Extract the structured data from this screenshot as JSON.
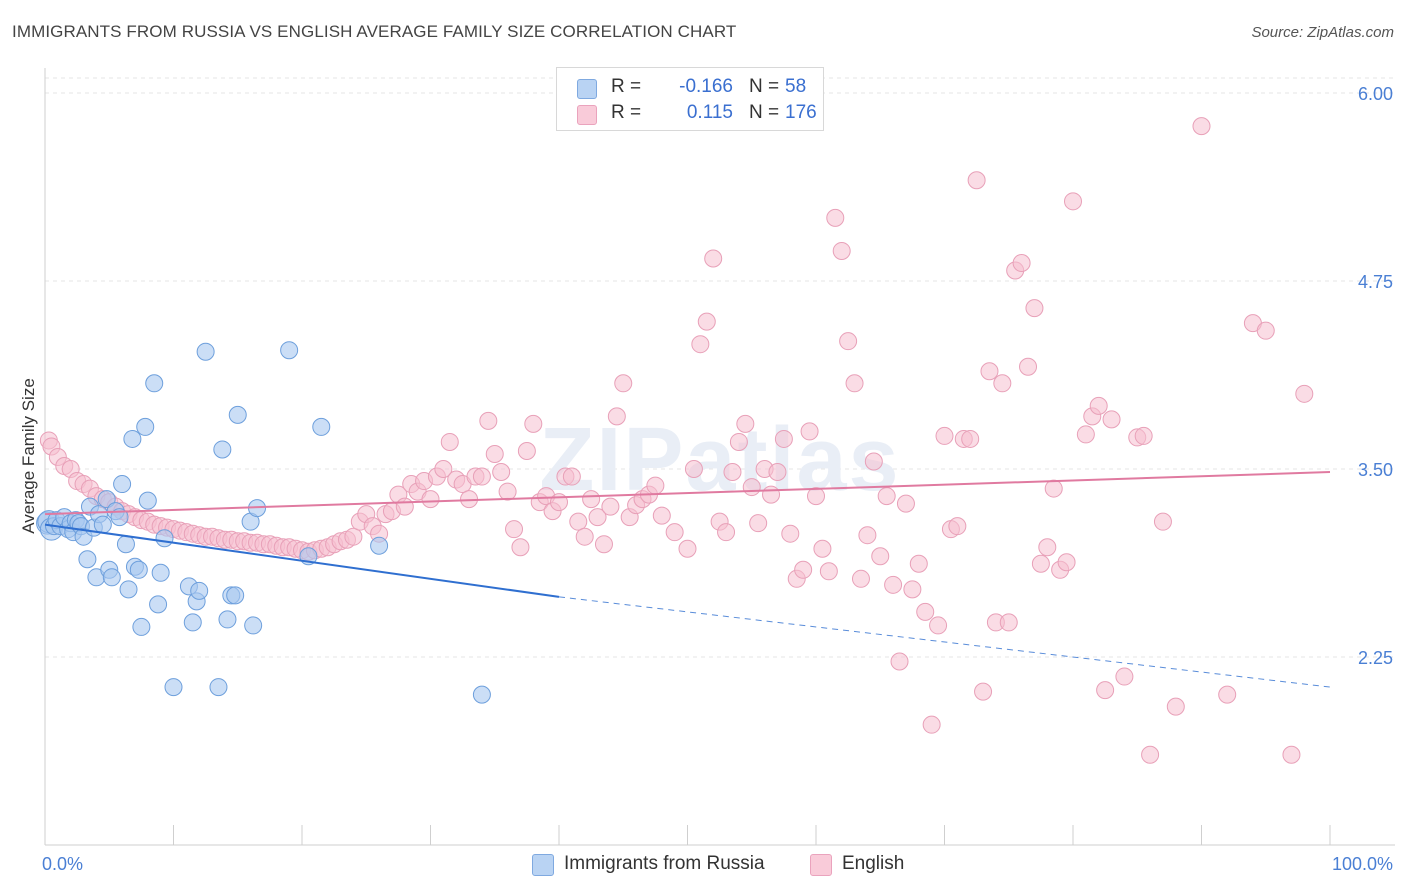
{
  "header": {
    "title": "IMMIGRANTS FROM RUSSIA VS ENGLISH AVERAGE FAMILY SIZE CORRELATION CHART",
    "source": "Source: ZipAtlas.com"
  },
  "legend": {
    "rows": [
      {
        "r_label": "R =",
        "r_value": "-0.166",
        "n_label": "N =",
        "n_value": "58"
      },
      {
        "r_label": "R =",
        "r_value": "0.115",
        "n_label": "N =",
        "n_value": "176"
      }
    ]
  },
  "bottom_legend": {
    "items": [
      {
        "label": "Immigrants from Russia"
      },
      {
        "label": "English"
      }
    ]
  },
  "colors": {
    "blue_fill": "#a9c8f0",
    "blue_stroke": "#6d9fdc",
    "blue_line": "#2f6fd0",
    "pink_fill": "#f6bfd0",
    "pink_stroke": "#e8a0b8",
    "pink_line": "#e07aa0",
    "tick_label": "#4a7fd4",
    "grid": "#e6e6e6"
  },
  "chart_data": {
    "type": "scatter",
    "title": "IMMIGRANTS FROM RUSSIA VS ENGLISH AVERAGE FAMILY SIZE CORRELATION CHART",
    "xlabel": "",
    "ylabel": "Average Family Size",
    "x_unit": "%",
    "xlim": [
      0,
      100
    ],
    "ylim": [
      1.0,
      6.1
    ],
    "y_ticks": [
      2.25,
      3.5,
      4.75,
      6.0
    ],
    "y_tick_labels": [
      "2.25",
      "3.50",
      "4.75",
      "6.00"
    ],
    "x_tick_labels": [
      "0.0%",
      "100.0%"
    ],
    "grid": true,
    "legend_position": "top-center",
    "watermark": "ZIPatlas",
    "series": [
      {
        "name": "Immigrants from Russia",
        "color": "#a9c8f0",
        "trend": {
          "x0": 0.0,
          "y0": 3.13,
          "x1": 40.0,
          "y1": 2.65,
          "dashed_to_x": 100.0,
          "dashed_to_y": 2.05
        },
        "points": [
          [
            0.2,
            3.14
          ],
          [
            0.3,
            3.15
          ],
          [
            0.5,
            3.1
          ],
          [
            0.7,
            3.12
          ],
          [
            0.9,
            3.16
          ],
          [
            1.2,
            3.12
          ],
          [
            1.5,
            3.18
          ],
          [
            1.8,
            3.1
          ],
          [
            2.0,
            3.14
          ],
          [
            2.2,
            3.08
          ],
          [
            2.4,
            3.16
          ],
          [
            2.6,
            3.14
          ],
          [
            2.8,
            3.12
          ],
          [
            3.0,
            3.05
          ],
          [
            3.3,
            2.9
          ],
          [
            3.5,
            3.25
          ],
          [
            3.8,
            3.11
          ],
          [
            4.0,
            2.78
          ],
          [
            4.2,
            3.2
          ],
          [
            4.5,
            3.13
          ],
          [
            4.8,
            3.3
          ],
          [
            5.0,
            2.83
          ],
          [
            5.2,
            2.78
          ],
          [
            5.5,
            3.22
          ],
          [
            5.8,
            3.18
          ],
          [
            6.0,
            3.4
          ],
          [
            6.3,
            3.0
          ],
          [
            6.5,
            2.7
          ],
          [
            6.8,
            3.7
          ],
          [
            7.0,
            2.85
          ],
          [
            7.3,
            2.83
          ],
          [
            7.5,
            2.45
          ],
          [
            7.8,
            3.78
          ],
          [
            8.0,
            3.29
          ],
          [
            8.5,
            4.07
          ],
          [
            8.8,
            2.6
          ],
          [
            9.0,
            2.81
          ],
          [
            9.3,
            3.04
          ],
          [
            10.0,
            2.05
          ],
          [
            11.2,
            2.72
          ],
          [
            11.5,
            2.48
          ],
          [
            11.8,
            2.62
          ],
          [
            12.0,
            2.69
          ],
          [
            12.5,
            4.28
          ],
          [
            13.5,
            2.05
          ],
          [
            13.8,
            3.63
          ],
          [
            14.2,
            2.5
          ],
          [
            14.5,
            2.66
          ],
          [
            14.8,
            2.66
          ],
          [
            15.0,
            3.86
          ],
          [
            16.0,
            3.15
          ],
          [
            16.2,
            2.46
          ],
          [
            16.5,
            3.24
          ],
          [
            19.0,
            4.29
          ],
          [
            20.5,
            2.92
          ],
          [
            21.5,
            3.78
          ],
          [
            26.0,
            2.99
          ],
          [
            34.0,
            2.0
          ]
        ]
      },
      {
        "name": "English",
        "color": "#f6bfd0",
        "trend": {
          "x0": 0.0,
          "y0": 3.2,
          "x1": 100.0,
          "y1": 3.48
        },
        "points": [
          [
            0.3,
            3.69
          ],
          [
            0.5,
            3.65
          ],
          [
            1.0,
            3.58
          ],
          [
            1.5,
            3.52
          ],
          [
            2.0,
            3.5
          ],
          [
            2.5,
            3.42
          ],
          [
            3.0,
            3.4
          ],
          [
            3.5,
            3.37
          ],
          [
            4.0,
            3.32
          ],
          [
            4.5,
            3.3
          ],
          [
            5.0,
            3.28
          ],
          [
            5.5,
            3.25
          ],
          [
            6.0,
            3.22
          ],
          [
            6.5,
            3.2
          ],
          [
            7.0,
            3.18
          ],
          [
            7.5,
            3.16
          ],
          [
            8.0,
            3.15
          ],
          [
            8.5,
            3.13
          ],
          [
            9.0,
            3.12
          ],
          [
            9.5,
            3.11
          ],
          [
            10.0,
            3.1
          ],
          [
            10.5,
            3.09
          ],
          [
            11.0,
            3.08
          ],
          [
            11.5,
            3.07
          ],
          [
            12.0,
            3.06
          ],
          [
            12.5,
            3.05
          ],
          [
            13.0,
            3.05
          ],
          [
            13.5,
            3.04
          ],
          [
            14.0,
            3.03
          ],
          [
            14.5,
            3.03
          ],
          [
            15.0,
            3.02
          ],
          [
            15.5,
            3.02
          ],
          [
            16.0,
            3.01
          ],
          [
            16.5,
            3.01
          ],
          [
            17.0,
            3.0
          ],
          [
            17.5,
            3.0
          ],
          [
            18.0,
            2.99
          ],
          [
            18.5,
            2.98
          ],
          [
            19.0,
            2.98
          ],
          [
            19.5,
            2.97
          ],
          [
            20.0,
            2.96
          ],
          [
            20.5,
            2.95
          ],
          [
            21.0,
            2.96
          ],
          [
            21.5,
            2.97
          ],
          [
            22.0,
            2.98
          ],
          [
            22.5,
            3.0
          ],
          [
            23.0,
            3.02
          ],
          [
            23.5,
            3.03
          ],
          [
            24.0,
            3.05
          ],
          [
            24.5,
            3.15
          ],
          [
            25.0,
            3.2
          ],
          [
            25.5,
            3.12
          ],
          [
            26.0,
            3.07
          ],
          [
            26.5,
            3.2
          ],
          [
            27.0,
            3.22
          ],
          [
            27.5,
            3.33
          ],
          [
            28.0,
            3.25
          ],
          [
            28.5,
            3.4
          ],
          [
            29.0,
            3.35
          ],
          [
            29.5,
            3.42
          ],
          [
            30.0,
            3.3
          ],
          [
            30.5,
            3.45
          ],
          [
            31.0,
            3.5
          ],
          [
            31.5,
            3.68
          ],
          [
            32.0,
            3.43
          ],
          [
            32.5,
            3.4
          ],
          [
            33.0,
            3.3
          ],
          [
            33.5,
            3.45
          ],
          [
            34.0,
            3.45
          ],
          [
            34.5,
            3.82
          ],
          [
            35.0,
            3.6
          ],
          [
            35.5,
            3.48
          ],
          [
            36.0,
            3.35
          ],
          [
            36.5,
            3.1
          ],
          [
            37.0,
            2.98
          ],
          [
            37.5,
            3.62
          ],
          [
            38.0,
            3.8
          ],
          [
            38.5,
            3.28
          ],
          [
            39.0,
            3.32
          ],
          [
            39.5,
            3.22
          ],
          [
            40.0,
            3.28
          ],
          [
            40.5,
            3.45
          ],
          [
            41.0,
            3.45
          ],
          [
            41.5,
            3.15
          ],
          [
            42.0,
            3.05
          ],
          [
            42.5,
            3.3
          ],
          [
            43.0,
            3.18
          ],
          [
            43.5,
            3.0
          ],
          [
            44.0,
            3.25
          ],
          [
            44.5,
            3.85
          ],
          [
            45.0,
            4.07
          ],
          [
            45.5,
            3.18
          ],
          [
            46.0,
            3.26
          ],
          [
            46.5,
            3.3
          ],
          [
            47.0,
            3.33
          ],
          [
            47.5,
            3.39
          ],
          [
            48.0,
            3.19
          ],
          [
            49.0,
            3.08
          ],
          [
            50.0,
            2.97
          ],
          [
            50.5,
            3.5
          ],
          [
            51.0,
            4.33
          ],
          [
            51.5,
            4.48
          ],
          [
            52.0,
            4.9
          ],
          [
            52.5,
            3.15
          ],
          [
            53.0,
            3.08
          ],
          [
            53.5,
            3.48
          ],
          [
            54.0,
            3.68
          ],
          [
            54.5,
            3.8
          ],
          [
            55.0,
            3.38
          ],
          [
            55.5,
            3.14
          ],
          [
            56.0,
            3.5
          ],
          [
            56.5,
            3.33
          ],
          [
            57.0,
            3.48
          ],
          [
            57.5,
            3.7
          ],
          [
            58.0,
            3.07
          ],
          [
            58.5,
            2.77
          ],
          [
            59.0,
            2.83
          ],
          [
            59.5,
            3.75
          ],
          [
            60.0,
            3.32
          ],
          [
            60.5,
            2.97
          ],
          [
            61.0,
            2.82
          ],
          [
            61.5,
            5.17
          ],
          [
            62.0,
            4.95
          ],
          [
            62.5,
            4.35
          ],
          [
            63.0,
            4.07
          ],
          [
            63.5,
            2.77
          ],
          [
            64.0,
            3.06
          ],
          [
            64.5,
            3.55
          ],
          [
            65.0,
            2.92
          ],
          [
            65.5,
            3.32
          ],
          [
            66.0,
            2.73
          ],
          [
            66.5,
            2.22
          ],
          [
            67.0,
            3.27
          ],
          [
            67.5,
            2.7
          ],
          [
            68.0,
            2.87
          ],
          [
            68.5,
            2.55
          ],
          [
            69.0,
            1.8
          ],
          [
            69.5,
            2.46
          ],
          [
            70.0,
            3.72
          ],
          [
            70.5,
            3.1
          ],
          [
            71.0,
            3.12
          ],
          [
            71.5,
            3.7
          ],
          [
            72.0,
            3.7
          ],
          [
            72.5,
            5.42
          ],
          [
            73.0,
            2.02
          ],
          [
            73.5,
            4.15
          ],
          [
            74.0,
            2.48
          ],
          [
            74.5,
            4.07
          ],
          [
            75.0,
            2.48
          ],
          [
            75.5,
            4.82
          ],
          [
            76.0,
            4.87
          ],
          [
            76.5,
            4.18
          ],
          [
            77.0,
            4.57
          ],
          [
            77.5,
            2.87
          ],
          [
            78.0,
            2.98
          ],
          [
            78.5,
            3.37
          ],
          [
            79.0,
            2.83
          ],
          [
            79.5,
            2.88
          ],
          [
            80.0,
            5.28
          ],
          [
            81.0,
            3.73
          ],
          [
            81.5,
            3.85
          ],
          [
            82.0,
            3.92
          ],
          [
            82.5,
            2.03
          ],
          [
            83.0,
            3.83
          ],
          [
            84.0,
            2.12
          ],
          [
            85.0,
            3.71
          ],
          [
            85.5,
            3.72
          ],
          [
            86.0,
            1.6
          ],
          [
            87.0,
            3.15
          ],
          [
            88.0,
            1.92
          ],
          [
            90.0,
            5.78
          ],
          [
            92.0,
            2.0
          ],
          [
            94.0,
            4.47
          ],
          [
            95.0,
            4.42
          ],
          [
            97.0,
            1.6
          ],
          [
            98.0,
            4.0
          ]
        ]
      }
    ]
  }
}
